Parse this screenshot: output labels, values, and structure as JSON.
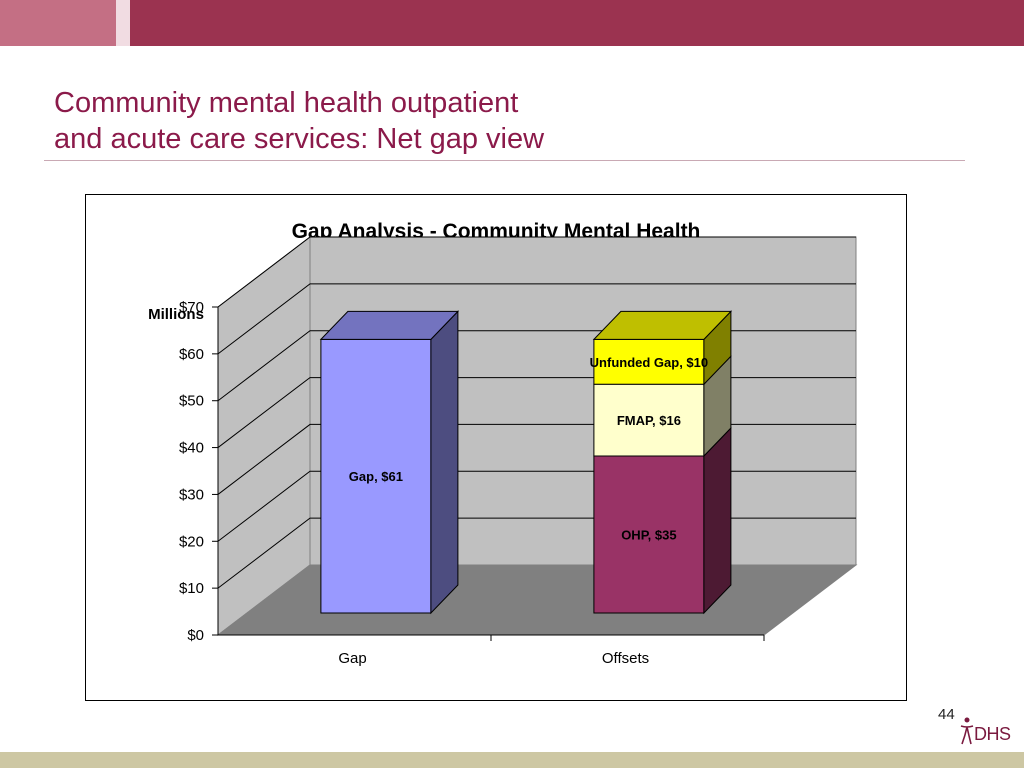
{
  "slide": {
    "title_line1": "Community mental health outpatient",
    "title_line2": "and acute care services: Net gap view",
    "page_number": "44",
    "logo_text": "DHS"
  },
  "colors": {
    "title": "#8b1a4a",
    "top_band": "#9b3350",
    "bottom_band": "#cdc7a3"
  },
  "chart_data": {
    "type": "bar",
    "stacked": true,
    "three_d": true,
    "title": "Gap Analysis - Community Mental Health",
    "ylabel": "Millions",
    "xlabel": "",
    "categories": [
      "Gap",
      "Offsets"
    ],
    "ylim": [
      0,
      70
    ],
    "yticks": [
      "$0",
      "$10",
      "$20",
      "$30",
      "$40",
      "$50",
      "$60",
      "$70"
    ],
    "grid": true,
    "series": [
      {
        "name": "Gap",
        "values": [
          61,
          0
        ],
        "label": "Gap, $61",
        "color": "#9999ff"
      },
      {
        "name": "OHP",
        "values": [
          0,
          35
        ],
        "label": "OHP, $35",
        "color": "#993366"
      },
      {
        "name": "FMAP",
        "values": [
          0,
          16
        ],
        "label": "FMAP, $16",
        "color": "#ffffcc"
      },
      {
        "name": "Unfunded Gap",
        "values": [
          0,
          10
        ],
        "label": "Unfunded Gap, $10",
        "color": "#ffff00"
      }
    ]
  }
}
